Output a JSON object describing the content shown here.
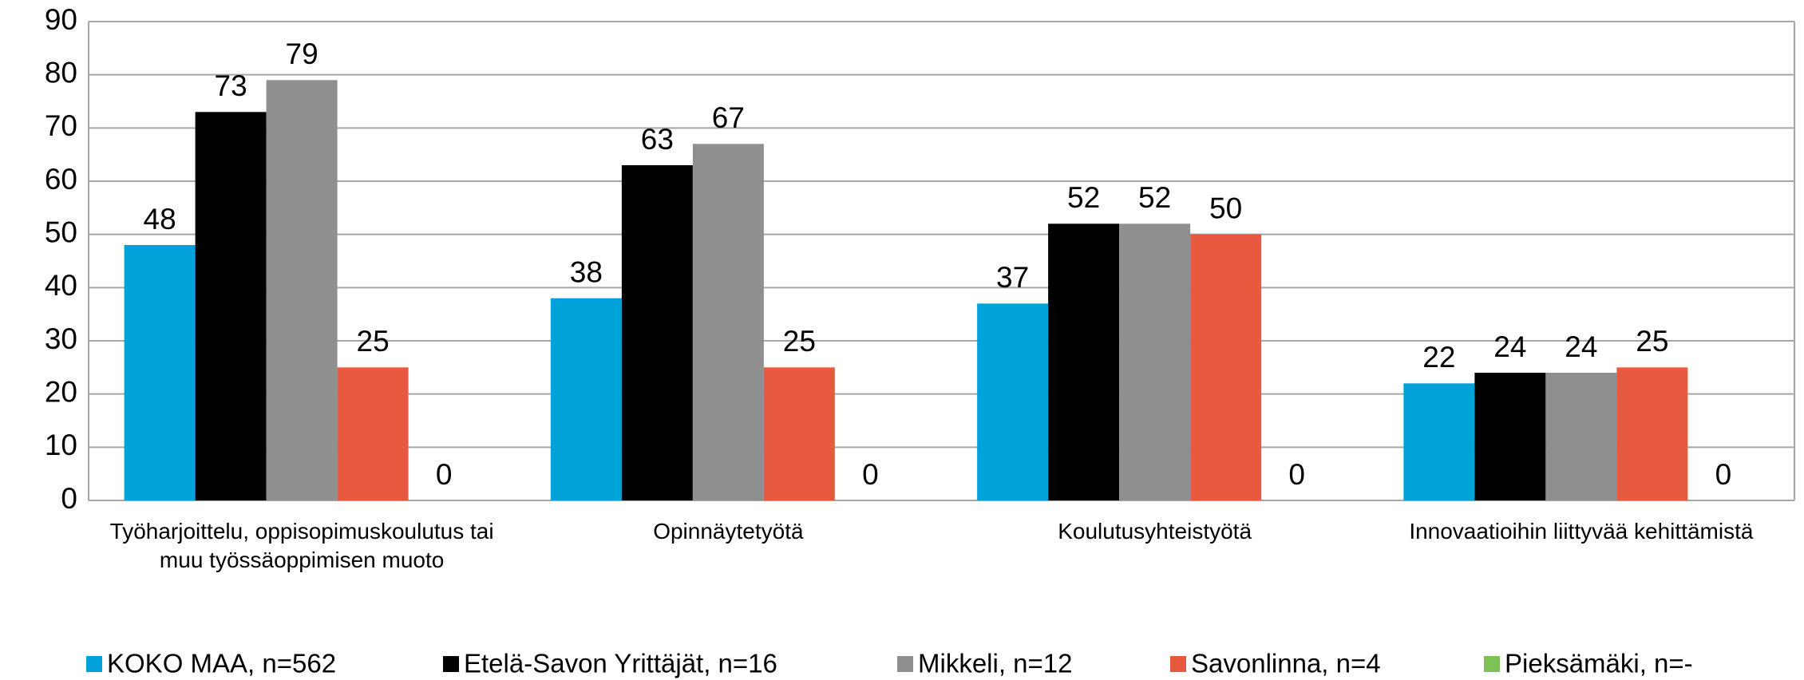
{
  "chart_data": {
    "type": "bar",
    "categories": [
      "Työharjoittelu, oppisopimuskoulutus tai muu työssäoppimisen muoto",
      "Opinnäytetyötä",
      "Koulutusyhteistyötä",
      "Innovaatioihin liittyvää kehittämistä"
    ],
    "series": [
      {
        "name": "KOKO MAA, n=562",
        "color": "#00a2d9",
        "values": [
          48,
          38,
          37,
          22
        ]
      },
      {
        "name": "Etelä-Savon Yrittäjät, n=16",
        "color": "#000000",
        "values": [
          73,
          63,
          52,
          24
        ]
      },
      {
        "name": "Mikkeli, n=12",
        "color": "#8f8f8f",
        "values": [
          79,
          67,
          52,
          24
        ]
      },
      {
        "name": "Savonlinna, n=4",
        "color": "#e85a40",
        "values": [
          25,
          25,
          50,
          25
        ]
      },
      {
        "name": "Pieksämäki, n=-",
        "color": "#7dc256",
        "values": [
          0,
          0,
          0,
          0
        ]
      }
    ],
    "ylim": [
      0,
      90
    ],
    "yticks": [
      0,
      10,
      20,
      30,
      40,
      50,
      60,
      70,
      80,
      90
    ],
    "grid": true
  }
}
